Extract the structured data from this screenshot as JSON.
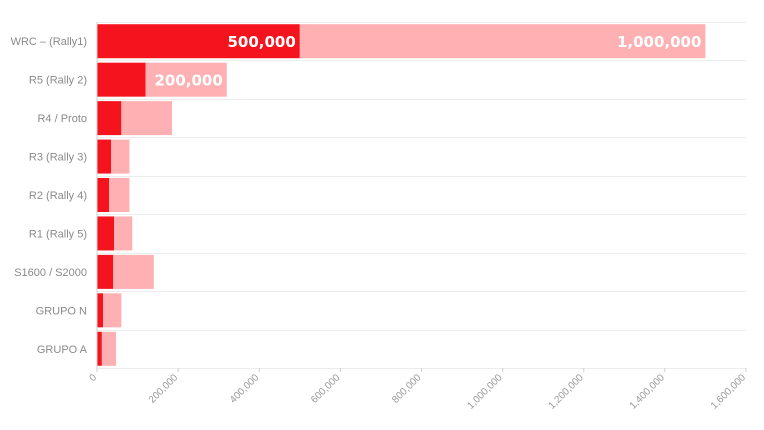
{
  "chart_data": {
    "type": "bar",
    "orientation": "horizontal",
    "stacked": true,
    "categories": [
      "WRC – (Rally1)",
      "R5 (Rally 2)",
      "R4 / Proto",
      "R3 (Rally 3)",
      "R2 (Rally 4)",
      "R1 (Rally 5)",
      "S1600 / S2000",
      "GRUPO N",
      "GRUPO A"
    ],
    "series": [
      {
        "color": "#f5141e",
        "values": [
          500000,
          120000,
          60000,
          35000,
          30000,
          42000,
          40000,
          15000,
          12000
        ]
      },
      {
        "color": "#ffb0b3",
        "values": [
          1000000,
          200000,
          125000,
          45000,
          50000,
          45000,
          100000,
          45000,
          35000
        ]
      }
    ],
    "data_labels": [
      {
        "category": 0,
        "series": 0,
        "text": "500,000"
      },
      {
        "category": 0,
        "series": 1,
        "text": "1,000,000"
      },
      {
        "category": 1,
        "series": 1,
        "text": "200,000"
      }
    ],
    "x_ticks": [
      0,
      200000,
      400000,
      600000,
      800000,
      1000000,
      1200000,
      1400000,
      1600000
    ],
    "x_tick_labels": [
      "0",
      "200,000",
      "400,000",
      "600,000",
      "800,000",
      "1,000,000",
      "1,200,000",
      "1,400,000",
      "1,600,000"
    ],
    "xlim": [
      0,
      1600000
    ],
    "title": "",
    "xlabel": "",
    "ylabel": "",
    "grid": true,
    "legend": "none"
  }
}
